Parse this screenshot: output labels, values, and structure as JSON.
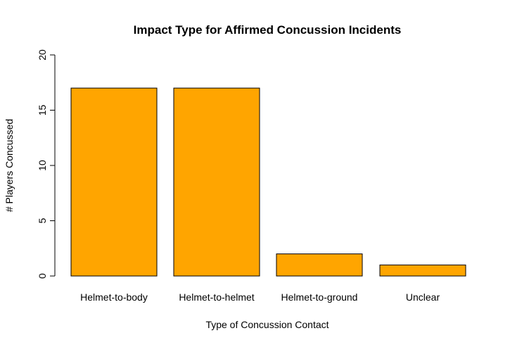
{
  "chart_data": {
    "type": "bar",
    "title": "Impact Type for Affirmed Concussion Incidents",
    "xlabel": "Type of Concussion Contact",
    "ylabel": "# Players Concussed",
    "categories": [
      "Helmet-to-body",
      "Helmet-to-helmet",
      "Helmet-to-ground",
      "Unclear"
    ],
    "values": [
      17,
      17,
      2,
      1
    ],
    "ylim": [
      0,
      20
    ],
    "yticks": [
      "0",
      "5",
      "10",
      "15",
      "20"
    ],
    "grid": false,
    "bar_color": "#FFA500"
  }
}
